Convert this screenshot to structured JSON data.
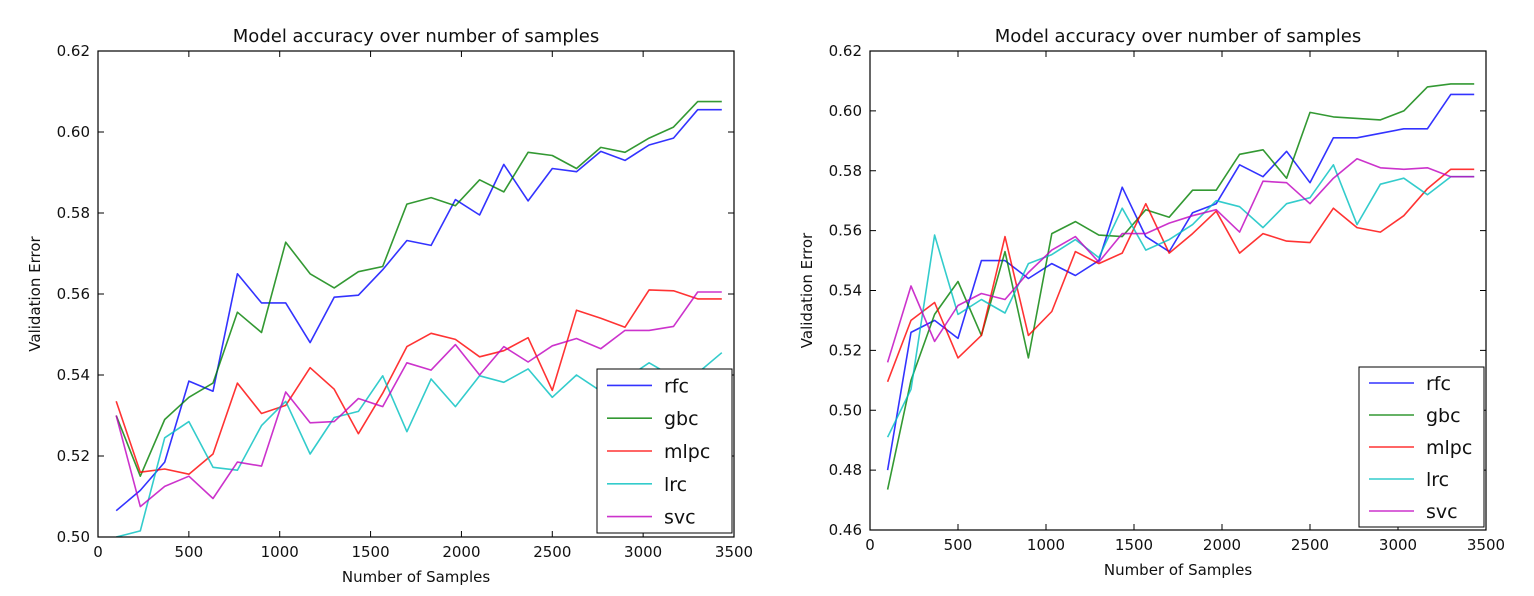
{
  "chart_data": [
    {
      "type": "line",
      "title": "Model accuracy over number of samples",
      "xlabel": "Number of Samples",
      "ylabel": "Validation Error",
      "xlim": [
        0,
        3500
      ],
      "ylim": [
        0.5,
        0.62
      ],
      "xticks": [
        0,
        500,
        1000,
        1500,
        2000,
        2500,
        3000,
        3500
      ],
      "xtick_labels": [
        "0",
        "500",
        "1000",
        "1500",
        "2000",
        "2500",
        "3000",
        "3500"
      ],
      "yticks": [
        0.5,
        0.52,
        0.54,
        0.56,
        0.58,
        0.6,
        0.62
      ],
      "ytick_labels": [
        "0.50",
        "0.52",
        "0.54",
        "0.56",
        "0.58",
        "0.60",
        "0.62"
      ],
      "grid": false,
      "legend_position": "lower-right",
      "x": [
        100,
        233,
        367,
        500,
        633,
        767,
        900,
        1033,
        1167,
        1300,
        1433,
        1567,
        1700,
        1833,
        1967,
        2100,
        2233,
        2367,
        2500,
        2633,
        2767,
        2900,
        3033,
        3167,
        3300,
        3433
      ],
      "series": [
        {
          "name": "rfc",
          "color": "#0000ff",
          "values": [
            0.5065,
            0.5115,
            0.5185,
            0.5385,
            0.536,
            0.565,
            0.5578,
            0.5578,
            0.548,
            0.5592,
            0.5597,
            0.566,
            0.5732,
            0.572,
            0.5833,
            0.5795,
            0.592,
            0.583,
            0.591,
            0.5902,
            0.5952,
            0.593,
            0.5968,
            0.5985,
            0.6055,
            0.6055
          ]
        },
        {
          "name": "gbc",
          "color": "#007f00",
          "values": [
            0.53,
            0.515,
            0.529,
            0.5345,
            0.538,
            0.5555,
            0.5505,
            0.5728,
            0.565,
            0.5615,
            0.5655,
            0.5668,
            0.5822,
            0.5838,
            0.5818,
            0.5882,
            0.5852,
            0.595,
            0.5942,
            0.591,
            0.5962,
            0.595,
            0.5985,
            0.6012,
            0.6075,
            0.6075
          ]
        },
        {
          "name": "mlpc",
          "color": "#ff0000",
          "values": [
            0.5335,
            0.516,
            0.5168,
            0.5155,
            0.5205,
            0.538,
            0.5305,
            0.5325,
            0.5418,
            0.5365,
            0.5255,
            0.5355,
            0.547,
            0.5503,
            0.5488,
            0.5445,
            0.546,
            0.5492,
            0.5362,
            0.556,
            0.554,
            0.5518,
            0.561,
            0.5608,
            0.5588,
            0.5588
          ]
        },
        {
          "name": "lrc",
          "color": "#00bfbf",
          "values": [
            0.5,
            0.5015,
            0.5245,
            0.5285,
            0.5172,
            0.5165,
            0.5275,
            0.5335,
            0.5205,
            0.5295,
            0.531,
            0.5398,
            0.526,
            0.539,
            0.5322,
            0.5398,
            0.5382,
            0.5415,
            0.5345,
            0.54,
            0.536,
            0.539,
            0.543,
            0.5395,
            0.5405,
            0.5455
          ]
        },
        {
          "name": "svc",
          "color": "#bf00bf",
          "values": [
            0.53,
            0.5075,
            0.5125,
            0.515,
            0.5095,
            0.5185,
            0.5175,
            0.5358,
            0.5282,
            0.5285,
            0.5342,
            0.5322,
            0.543,
            0.5412,
            0.5475,
            0.54,
            0.547,
            0.5432,
            0.5472,
            0.549,
            0.5465,
            0.551,
            0.551,
            0.552,
            0.5605,
            0.5605
          ]
        }
      ]
    },
    {
      "type": "line",
      "title": "Model accuracy over number of samples",
      "xlabel": "Number of Samples",
      "ylabel": "Validation Error",
      "xlim": [
        0,
        3500
      ],
      "ylim": [
        0.46,
        0.62
      ],
      "xticks": [
        0,
        500,
        1000,
        1500,
        2000,
        2500,
        3000,
        3500
      ],
      "xtick_labels": [
        "0",
        "500",
        "1000",
        "1500",
        "2000",
        "2500",
        "3000",
        "3500"
      ],
      "yticks": [
        0.46,
        0.48,
        0.5,
        0.52,
        0.54,
        0.56,
        0.58,
        0.6,
        0.62
      ],
      "ytick_labels": [
        "0.46",
        "0.48",
        "0.50",
        "0.52",
        "0.54",
        "0.56",
        "0.58",
        "0.60",
        "0.62"
      ],
      "grid": false,
      "legend_position": "lower-right",
      "x": [
        100,
        233,
        367,
        500,
        633,
        767,
        900,
        1033,
        1167,
        1300,
        1433,
        1567,
        1700,
        1833,
        1967,
        2100,
        2233,
        2367,
        2500,
        2633,
        2767,
        2900,
        3033,
        3167,
        3300,
        3433
      ],
      "series": [
        {
          "name": "rfc",
          "color": "#0000ff",
          "values": [
            0.48,
            0.526,
            0.53,
            0.524,
            0.55,
            0.55,
            0.544,
            0.549,
            0.545,
            0.55,
            0.5745,
            0.558,
            0.553,
            0.566,
            0.569,
            0.582,
            0.578,
            0.5865,
            0.576,
            0.591,
            0.591,
            0.5925,
            0.594,
            0.594,
            0.6055,
            0.6055
          ]
        },
        {
          "name": "gbc",
          "color": "#007f00",
          "values": [
            0.4735,
            0.51,
            0.532,
            0.543,
            0.525,
            0.553,
            0.5175,
            0.559,
            0.563,
            0.5585,
            0.558,
            0.567,
            0.5645,
            0.5735,
            0.5735,
            0.5855,
            0.587,
            0.5775,
            0.5995,
            0.598,
            0.5975,
            0.597,
            0.6,
            0.608,
            0.609,
            0.609
          ]
        },
        {
          "name": "mlpc",
          "color": "#ff0000",
          "values": [
            0.5095,
            0.53,
            0.536,
            0.5175,
            0.525,
            0.558,
            0.525,
            0.533,
            0.553,
            0.549,
            0.5525,
            0.569,
            0.5525,
            0.559,
            0.5665,
            0.5525,
            0.559,
            0.5565,
            0.556,
            0.5675,
            0.561,
            0.5595,
            0.565,
            0.574,
            0.5805,
            0.5805
          ]
        },
        {
          "name": "lrc",
          "color": "#00bfbf",
          "values": [
            0.491,
            0.507,
            0.5585,
            0.532,
            0.537,
            0.5325,
            0.549,
            0.552,
            0.557,
            0.551,
            0.5675,
            0.5535,
            0.557,
            0.562,
            0.57,
            0.568,
            0.561,
            0.569,
            0.571,
            0.582,
            0.562,
            0.5755,
            0.5775,
            0.572,
            0.578,
            0.578
          ]
        },
        {
          "name": "svc",
          "color": "#bf00bf",
          "values": [
            0.516,
            0.5415,
            0.523,
            0.535,
            0.539,
            0.537,
            0.546,
            0.5535,
            0.558,
            0.5495,
            0.559,
            0.559,
            0.5625,
            0.565,
            0.567,
            0.5595,
            0.5765,
            0.576,
            0.569,
            0.5775,
            0.584,
            0.581,
            0.5805,
            0.581,
            0.578,
            0.578
          ]
        }
      ]
    }
  ]
}
